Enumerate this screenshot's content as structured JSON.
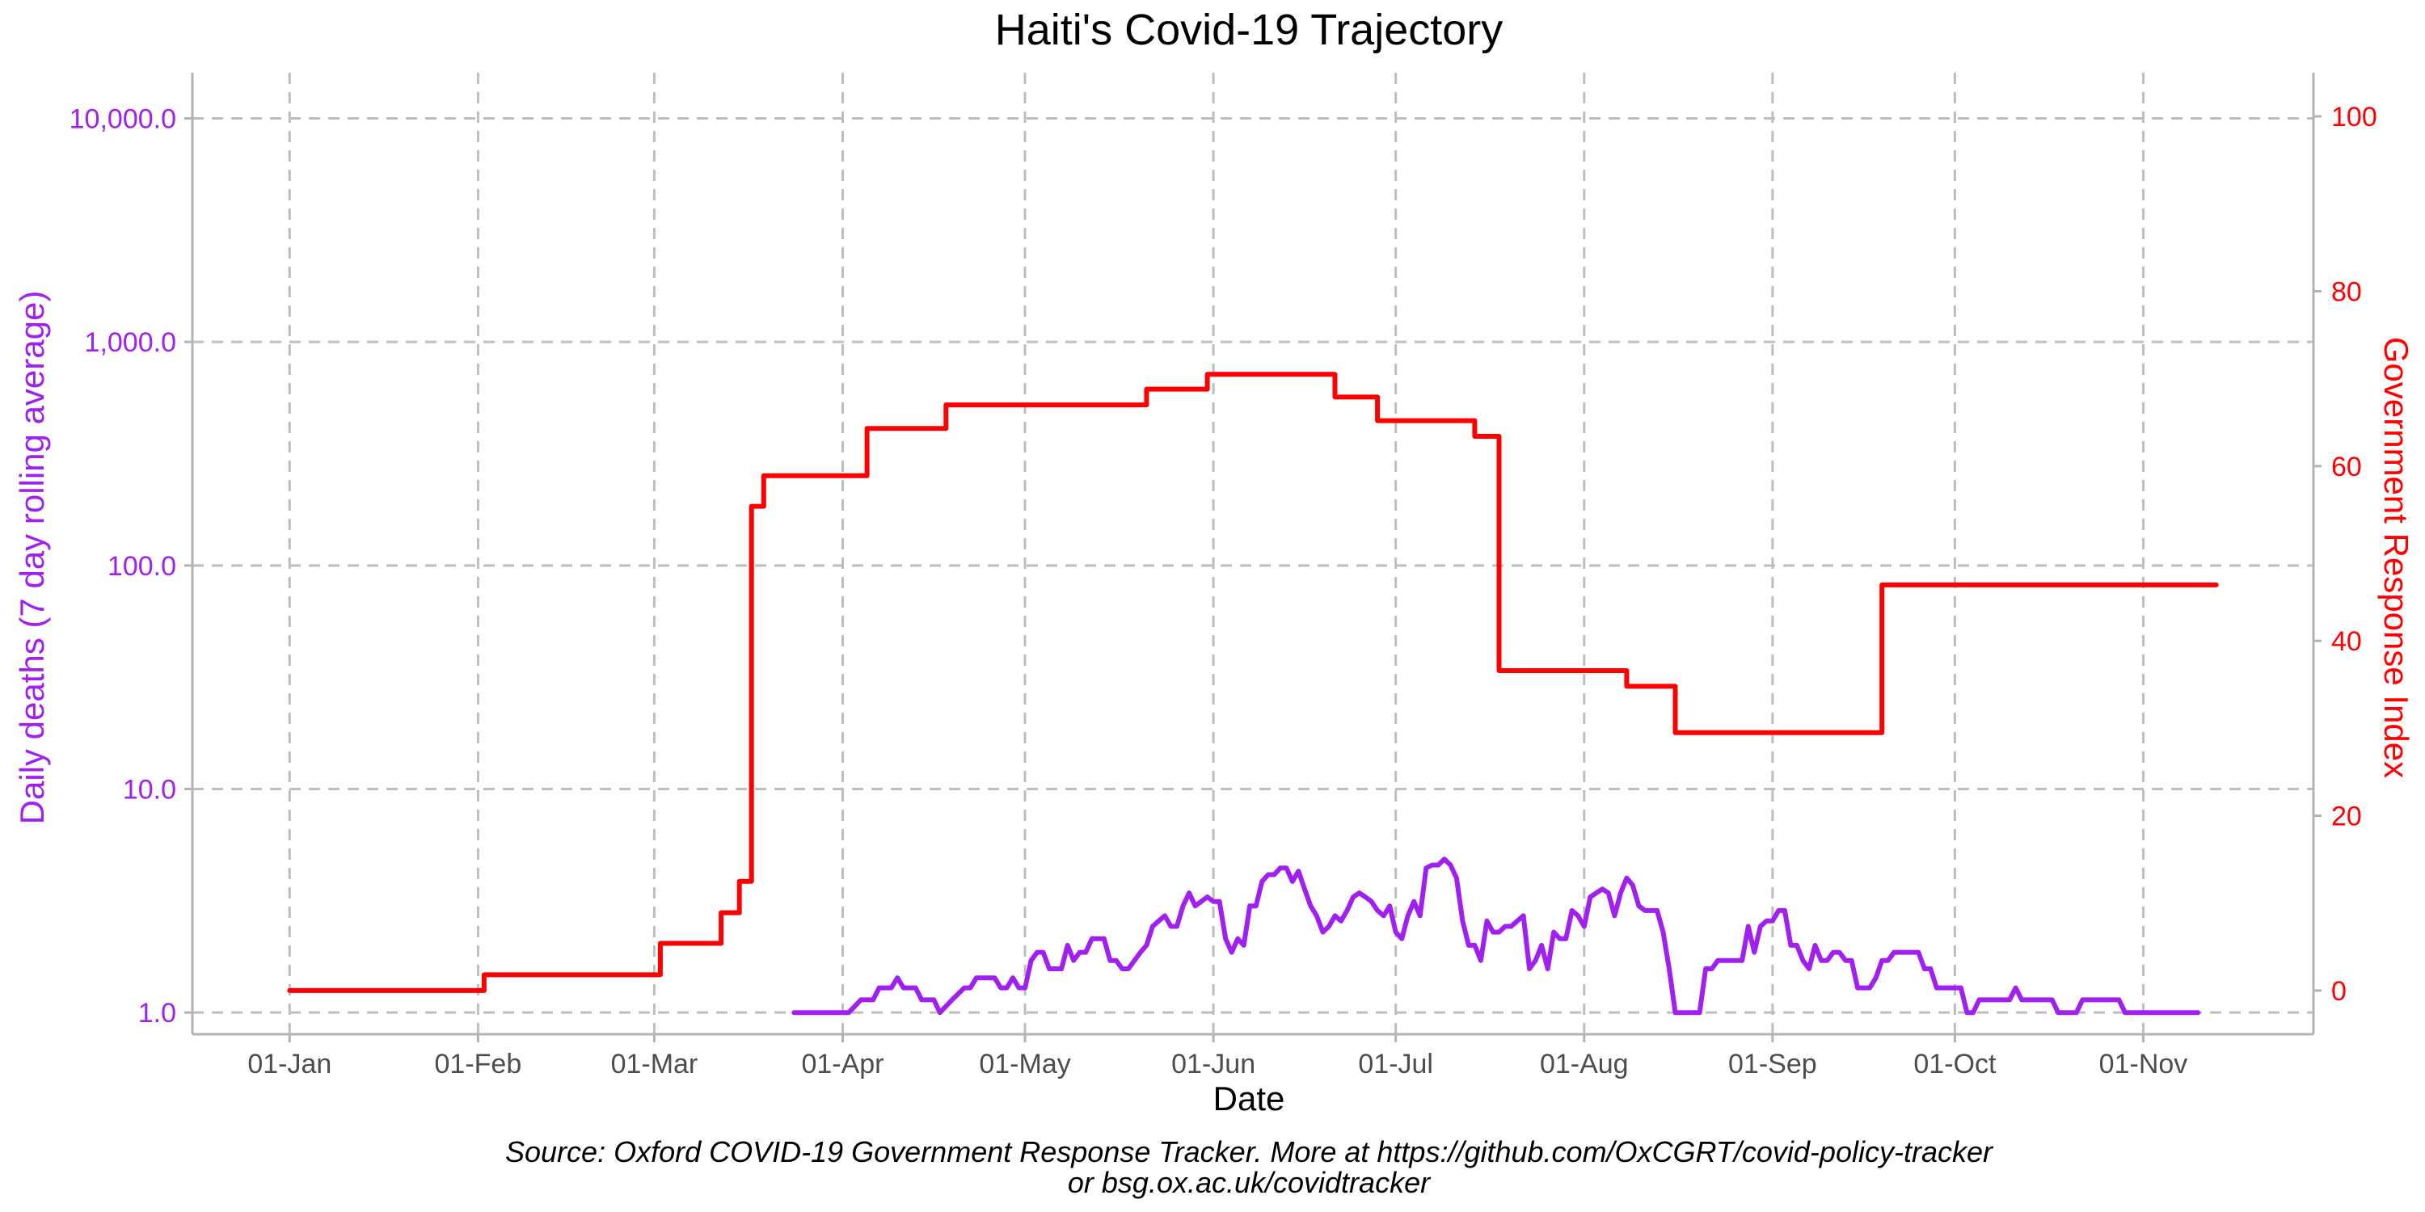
{
  "colors": {
    "deaths": "#a020f0",
    "response": "#ff0000",
    "grid": "#bebebe",
    "axis": "#b3b3b3",
    "text": "#000000",
    "tick_text": "#4d4d4d"
  },
  "chart_data": {
    "type": "line",
    "title": "Haiti's Covid-19 Trajectory",
    "xlabel": "Date",
    "ylabel_left": "Daily deaths (7 day rolling average)",
    "ylabel_right": "Government Response Index",
    "caption_line1": "Source: Oxford COVID-19 Government Response Tracker. More at https://github.com/OxCGRT/covid-policy-tracker",
    "caption_line2": "or bsg.ox.ac.uk/covidtracker",
    "x_ticks": [
      {
        "date": "2020-01-01",
        "label": "01-Jan"
      },
      {
        "date": "2020-02-01",
        "label": "01-Feb"
      },
      {
        "date": "2020-03-01",
        "label": "01-Mar"
      },
      {
        "date": "2020-04-01",
        "label": "01-Apr"
      },
      {
        "date": "2020-05-01",
        "label": "01-May"
      },
      {
        "date": "2020-06-01",
        "label": "01-Jun"
      },
      {
        "date": "2020-07-01",
        "label": "01-Jul"
      },
      {
        "date": "2020-08-01",
        "label": "01-Aug"
      },
      {
        "date": "2020-09-01",
        "label": "01-Sep"
      },
      {
        "date": "2020-10-01",
        "label": "01-Oct"
      },
      {
        "date": "2020-11-01",
        "label": "01-Nov"
      }
    ],
    "xlim": [
      "2019-12-16",
      "2020-11-29"
    ],
    "y_left": {
      "scale": "log10",
      "lim": [
        0.8,
        16000
      ],
      "ticks": [
        {
          "value": 1,
          "label": "1.0"
        },
        {
          "value": 10,
          "label": "10.0"
        },
        {
          "value": 100,
          "label": "100.0"
        },
        {
          "value": 1000,
          "label": "1,000.0"
        },
        {
          "value": 10000,
          "label": "10,000.0"
        }
      ]
    },
    "y_right": {
      "scale": "linear",
      "lim": [
        -5,
        105
      ],
      "ticks": [
        {
          "value": 0,
          "label": "0"
        },
        {
          "value": 20,
          "label": "20"
        },
        {
          "value": 40,
          "label": "40"
        },
        {
          "value": 60,
          "label": "60"
        },
        {
          "value": 80,
          "label": "80"
        },
        {
          "value": 100,
          "label": "100"
        }
      ]
    },
    "grid": true,
    "series": [
      {
        "axis": "right",
        "color_key": "response",
        "step": true,
        "points": [
          [
            "2020-01-01",
            0
          ],
          [
            "2020-02-02",
            1.8
          ],
          [
            "2020-03-02",
            5.4
          ],
          [
            "2020-03-12",
            8.9
          ],
          [
            "2020-03-15",
            12.5
          ],
          [
            "2020-03-17",
            55.4
          ],
          [
            "2020-03-19",
            58.9
          ],
          [
            "2020-04-05",
            64.3
          ],
          [
            "2020-04-18",
            67.0
          ],
          [
            "2020-05-21",
            68.8
          ],
          [
            "2020-05-31",
            70.5
          ],
          [
            "2020-06-21",
            67.9
          ],
          [
            "2020-06-28",
            65.2
          ],
          [
            "2020-07-14",
            63.4
          ],
          [
            "2020-07-18",
            36.6
          ],
          [
            "2020-08-08",
            34.8
          ],
          [
            "2020-08-16",
            29.5
          ],
          [
            "2020-09-19",
            46.4
          ],
          [
            "2020-11-13",
            46.4
          ]
        ]
      },
      {
        "axis": "left",
        "color_key": "deaths",
        "step": false,
        "points": [
          [
            "2020-03-24",
            1.0
          ],
          [
            "2020-04-02",
            1.0
          ],
          [
            "2020-04-04",
            1.14
          ],
          [
            "2020-04-06",
            1.14
          ],
          [
            "2020-04-07",
            1.29
          ],
          [
            "2020-04-09",
            1.29
          ],
          [
            "2020-04-10",
            1.43
          ],
          [
            "2020-04-11",
            1.29
          ],
          [
            "2020-04-13",
            1.29
          ],
          [
            "2020-04-14",
            1.14
          ],
          [
            "2020-04-16",
            1.14
          ],
          [
            "2020-04-17",
            1.0
          ],
          [
            "2020-04-19",
            1.14
          ],
          [
            "2020-04-21",
            1.29
          ],
          [
            "2020-04-22",
            1.29
          ],
          [
            "2020-04-23",
            1.43
          ],
          [
            "2020-04-26",
            1.43
          ],
          [
            "2020-04-27",
            1.29
          ],
          [
            "2020-04-28",
            1.29
          ],
          [
            "2020-04-29",
            1.43
          ],
          [
            "2020-04-30",
            1.29
          ],
          [
            "2020-05-01",
            1.29
          ],
          [
            "2020-05-02",
            1.71
          ],
          [
            "2020-05-03",
            1.86
          ],
          [
            "2020-05-04",
            1.86
          ],
          [
            "2020-05-05",
            1.57
          ],
          [
            "2020-05-07",
            1.57
          ],
          [
            "2020-05-08",
            2.0
          ],
          [
            "2020-05-09",
            1.71
          ],
          [
            "2020-05-10",
            1.86
          ],
          [
            "2020-05-11",
            1.86
          ],
          [
            "2020-05-12",
            2.14
          ],
          [
            "2020-05-14",
            2.14
          ],
          [
            "2020-05-15",
            1.71
          ],
          [
            "2020-05-16",
            1.71
          ],
          [
            "2020-05-17",
            1.57
          ],
          [
            "2020-05-18",
            1.57
          ],
          [
            "2020-05-20",
            1.86
          ],
          [
            "2020-05-21",
            2.0
          ],
          [
            "2020-05-22",
            2.43
          ],
          [
            "2020-05-23",
            2.57
          ],
          [
            "2020-05-24",
            2.71
          ],
          [
            "2020-05-25",
            2.43
          ],
          [
            "2020-05-26",
            2.43
          ],
          [
            "2020-05-27",
            3.0
          ],
          [
            "2020-05-28",
            3.43
          ],
          [
            "2020-05-29",
            3.0
          ],
          [
            "2020-05-30",
            3.14
          ],
          [
            "2020-05-31",
            3.29
          ],
          [
            "2020-06-01",
            3.14
          ],
          [
            "2020-06-02",
            3.14
          ],
          [
            "2020-06-03",
            2.14
          ],
          [
            "2020-06-04",
            1.86
          ],
          [
            "2020-06-05",
            2.14
          ],
          [
            "2020-06-06",
            2.0
          ],
          [
            "2020-06-07",
            3.0
          ],
          [
            "2020-06-08",
            3.0
          ],
          [
            "2020-06-09",
            3.86
          ],
          [
            "2020-06-10",
            4.14
          ],
          [
            "2020-06-11",
            4.14
          ],
          [
            "2020-06-12",
            4.43
          ],
          [
            "2020-06-13",
            4.43
          ],
          [
            "2020-06-14",
            3.86
          ],
          [
            "2020-06-15",
            4.29
          ],
          [
            "2020-06-16",
            3.57
          ],
          [
            "2020-06-17",
            3.0
          ],
          [
            "2020-06-18",
            2.71
          ],
          [
            "2020-06-19",
            2.29
          ],
          [
            "2020-06-20",
            2.43
          ],
          [
            "2020-06-21",
            2.71
          ],
          [
            "2020-06-22",
            2.57
          ],
          [
            "2020-06-23",
            2.86
          ],
          [
            "2020-06-24",
            3.29
          ],
          [
            "2020-06-25",
            3.43
          ],
          [
            "2020-06-26",
            3.29
          ],
          [
            "2020-06-27",
            3.14
          ],
          [
            "2020-06-28",
            2.86
          ],
          [
            "2020-06-29",
            2.71
          ],
          [
            "2020-06-30",
            3.0
          ],
          [
            "2020-07-01",
            2.29
          ],
          [
            "2020-07-02",
            2.14
          ],
          [
            "2020-07-03",
            2.71
          ],
          [
            "2020-07-04",
            3.14
          ],
          [
            "2020-07-05",
            2.71
          ],
          [
            "2020-07-06",
            4.43
          ],
          [
            "2020-07-07",
            4.57
          ],
          [
            "2020-07-08",
            4.57
          ],
          [
            "2020-07-09",
            4.86
          ],
          [
            "2020-07-10",
            4.57
          ],
          [
            "2020-07-11",
            4.0
          ],
          [
            "2020-07-12",
            2.57
          ],
          [
            "2020-07-13",
            2.0
          ],
          [
            "2020-07-14",
            2.0
          ],
          [
            "2020-07-15",
            1.71
          ],
          [
            "2020-07-16",
            2.57
          ],
          [
            "2020-07-17",
            2.29
          ],
          [
            "2020-07-18",
            2.29
          ],
          [
            "2020-07-19",
            2.43
          ],
          [
            "2020-07-20",
            2.43
          ],
          [
            "2020-07-21",
            2.57
          ],
          [
            "2020-07-22",
            2.71
          ],
          [
            "2020-07-23",
            1.57
          ],
          [
            "2020-07-24",
            1.71
          ],
          [
            "2020-07-25",
            2.0
          ],
          [
            "2020-07-26",
            1.57
          ],
          [
            "2020-07-27",
            2.29
          ],
          [
            "2020-07-28",
            2.14
          ],
          [
            "2020-07-29",
            2.14
          ],
          [
            "2020-07-30",
            2.86
          ],
          [
            "2020-07-31",
            2.71
          ],
          [
            "2020-08-01",
            2.43
          ],
          [
            "2020-08-02",
            3.29
          ],
          [
            "2020-08-03",
            3.43
          ],
          [
            "2020-08-04",
            3.57
          ],
          [
            "2020-08-05",
            3.43
          ],
          [
            "2020-08-06",
            2.71
          ],
          [
            "2020-08-07",
            3.43
          ],
          [
            "2020-08-08",
            4.0
          ],
          [
            "2020-08-09",
            3.71
          ],
          [
            "2020-08-10",
            3.0
          ],
          [
            "2020-08-11",
            2.86
          ],
          [
            "2020-08-13",
            2.86
          ],
          [
            "2020-08-14",
            2.29
          ],
          [
            "2020-08-15",
            1.57
          ],
          [
            "2020-08-16",
            1.0
          ],
          [
            "2020-08-20",
            1.0
          ],
          [
            "2020-08-21",
            1.57
          ],
          [
            "2020-08-22",
            1.57
          ],
          [
            "2020-08-23",
            1.71
          ],
          [
            "2020-08-27",
            1.71
          ],
          [
            "2020-08-28",
            2.43
          ],
          [
            "2020-08-29",
            1.86
          ],
          [
            "2020-08-30",
            2.43
          ],
          [
            "2020-08-31",
            2.57
          ],
          [
            "2020-09-01",
            2.57
          ],
          [
            "2020-09-02",
            2.86
          ],
          [
            "2020-09-03",
            2.86
          ],
          [
            "2020-09-04",
            2.0
          ],
          [
            "2020-09-05",
            2.0
          ],
          [
            "2020-09-06",
            1.71
          ],
          [
            "2020-09-07",
            1.57
          ],
          [
            "2020-09-08",
            2.0
          ],
          [
            "2020-09-09",
            1.71
          ],
          [
            "2020-09-10",
            1.71
          ],
          [
            "2020-09-11",
            1.86
          ],
          [
            "2020-09-12",
            1.86
          ],
          [
            "2020-09-13",
            1.71
          ],
          [
            "2020-09-14",
            1.71
          ],
          [
            "2020-09-15",
            1.29
          ],
          [
            "2020-09-17",
            1.29
          ],
          [
            "2020-09-18",
            1.43
          ],
          [
            "2020-09-19",
            1.71
          ],
          [
            "2020-09-20",
            1.71
          ],
          [
            "2020-09-21",
            1.86
          ],
          [
            "2020-09-25",
            1.86
          ],
          [
            "2020-09-26",
            1.57
          ],
          [
            "2020-09-27",
            1.57
          ],
          [
            "2020-09-28",
            1.29
          ],
          [
            "2020-10-02",
            1.29
          ],
          [
            "2020-10-03",
            1.0
          ],
          [
            "2020-10-04",
            1.0
          ],
          [
            "2020-10-05",
            1.14
          ],
          [
            "2020-10-10",
            1.14
          ],
          [
            "2020-10-11",
            1.29
          ],
          [
            "2020-10-12",
            1.14
          ],
          [
            "2020-10-17",
            1.14
          ],
          [
            "2020-10-18",
            1.0
          ],
          [
            "2020-10-21",
            1.0
          ],
          [
            "2020-10-22",
            1.14
          ],
          [
            "2020-10-28",
            1.14
          ],
          [
            "2020-10-29",
            1.0
          ],
          [
            "2020-11-10",
            1.0
          ]
        ]
      }
    ]
  }
}
